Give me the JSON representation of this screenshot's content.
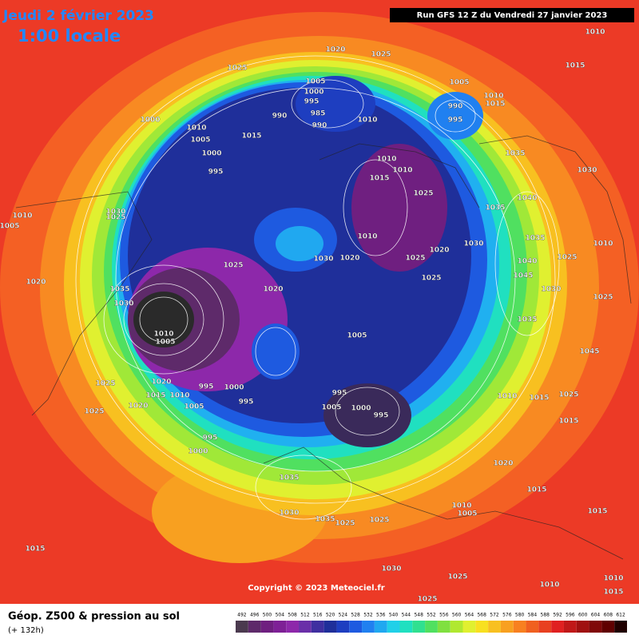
{
  "header": {
    "date": "Jeudi 2 février 2023",
    "time": "1:00 locale",
    "run": "Run GFS 12 Z du Vendredi 27 janvier 2023"
  },
  "footer": {
    "title": "Géop. Z500 & pression au sol",
    "lead": "(+ 132h)",
    "copyright": "Copyright © 2023 Meteociel.fr"
  },
  "scale": {
    "labels": [
      492,
      496,
      500,
      504,
      508,
      512,
      516,
      520,
      524,
      528,
      532,
      536,
      540,
      544,
      548,
      552,
      556,
      560,
      564,
      568,
      572,
      576,
      580,
      584,
      588,
      592,
      596,
      600,
      604,
      608,
      612
    ],
    "colors": [
      "#4b3a4f",
      "#5e2a6a",
      "#6f1f80",
      "#7e2096",
      "#8d28aa",
      "#6a2fa8",
      "#3f2fa0",
      "#1f2f9a",
      "#1e3ec0",
      "#1e5ae0",
      "#2080f0",
      "#20a8f0",
      "#20d0e8",
      "#20e0c0",
      "#30e090",
      "#50e060",
      "#80e040",
      "#b0e830",
      "#e0f030",
      "#f8e020",
      "#f8c020",
      "#f8a020",
      "#f88020",
      "#f06020",
      "#e84020",
      "#e02020",
      "#c01818",
      "#a01010",
      "#800808",
      "#600000",
      "#200000"
    ]
  },
  "isobars": [
    1010,
    1015,
    1020,
    1025,
    1025,
    1005,
    1000,
    995,
    985,
    990,
    990,
    1010,
    1005,
    1010,
    1015,
    990,
    995,
    1000,
    1010,
    1005,
    1015,
    1000,
    995,
    1035,
    1030,
    1010,
    1010,
    1015,
    1025,
    1040,
    1035,
    1010,
    1005,
    1030,
    1025,
    1010,
    1020,
    1030,
    1035,
    1010,
    1025,
    1030,
    1020,
    1025,
    1025,
    1040,
    1045,
    1025,
    1020,
    1035,
    1020,
    1030,
    1025,
    1030,
    1010,
    1005,
    1005,
    1035,
    1045,
    1020,
    1025,
    995,
    1000,
    1015,
    1010,
    995,
    995,
    1005,
    1000,
    995,
    1005,
    1020,
    1025,
    1010,
    1015,
    1025,
    1015,
    995,
    1000,
    1020,
    1035,
    1015,
    1010,
    1005,
    1030,
    1035,
    1025,
    1025,
    1015,
    1015,
    1030,
    1025,
    1010,
    1010,
    1015,
    1025
  ]
}
